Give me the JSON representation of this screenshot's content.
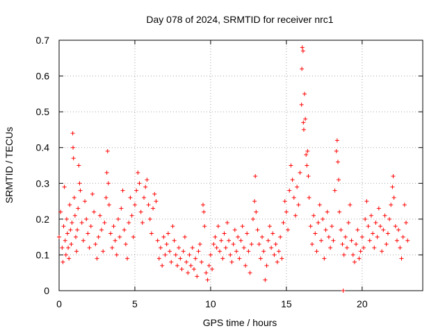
{
  "chart_data": {
    "type": "scatter",
    "title": "Day 078 of 2024, SRMTID for receiver nrc1",
    "xlabel": "GPS time / hours",
    "ylabel": "SRMTID / TECUs",
    "xlim": [
      0,
      24
    ],
    "ylim": [
      0,
      0.7
    ],
    "xticks": [
      0,
      5,
      10,
      15,
      20
    ],
    "yticks": [
      0,
      0.1,
      0.2,
      0.3,
      0.4,
      0.5,
      0.6,
      0.7
    ],
    "xtick_labels": [
      "0",
      "5",
      "10",
      "15",
      "20"
    ],
    "ytick_labels": [
      "0",
      "0.1",
      "0.2",
      "0.3",
      "0.4",
      "0.5",
      "0.6",
      "0.7"
    ],
    "grid": true,
    "marker": "+",
    "series": [
      {
        "name": "nrc1",
        "color": "#ff0000",
        "points": [
          [
            0.0,
            0.15
          ],
          [
            0.1,
            0.22
          ],
          [
            0.2,
            0.12
          ],
          [
            0.25,
            0.08
          ],
          [
            0.3,
            0.18
          ],
          [
            0.35,
            0.29
          ],
          [
            0.4,
            0.14
          ],
          [
            0.45,
            0.1
          ],
          [
            0.5,
            0.2
          ],
          [
            0.55,
            0.16
          ],
          [
            0.6,
            0.12
          ],
          [
            0.65,
            0.09
          ],
          [
            0.7,
            0.24
          ],
          [
            0.75,
            0.17
          ],
          [
            0.8,
            0.13
          ],
          [
            0.85,
            0.19
          ],
          [
            0.9,
            0.44
          ],
          [
            0.92,
            0.4
          ],
          [
            0.95,
            0.37
          ],
          [
            1.0,
            0.26
          ],
          [
            1.05,
            0.21
          ],
          [
            1.1,
            0.15
          ],
          [
            1.15,
            0.11
          ],
          [
            1.2,
            0.17
          ],
          [
            1.25,
            0.23
          ],
          [
            1.3,
            0.35
          ],
          [
            1.35,
            0.3
          ],
          [
            1.4,
            0.28
          ],
          [
            1.5,
            0.19
          ],
          [
            1.6,
            0.14
          ],
          [
            1.7,
            0.25
          ],
          [
            1.8,
            0.2
          ],
          [
            1.9,
            0.16
          ],
          [
            2.0,
            0.12
          ],
          [
            2.1,
            0.18
          ],
          [
            2.2,
            0.27
          ],
          [
            2.3,
            0.22
          ],
          [
            2.4,
            0.13
          ],
          [
            2.5,
            0.09
          ],
          [
            2.6,
            0.15
          ],
          [
            2.7,
            0.21
          ],
          [
            2.8,
            0.17
          ],
          [
            2.9,
            0.11
          ],
          [
            3.0,
            0.19
          ],
          [
            3.1,
            0.26
          ],
          [
            3.15,
            0.33
          ],
          [
            3.2,
            0.39
          ],
          [
            3.25,
            0.3
          ],
          [
            3.3,
            0.24
          ],
          [
            3.4,
            0.16
          ],
          [
            3.5,
            0.12
          ],
          [
            3.6,
            0.18
          ],
          [
            3.7,
            0.14
          ],
          [
            3.8,
            0.1
          ],
          [
            3.9,
            0.2
          ],
          [
            4.0,
            0.15
          ],
          [
            4.1,
            0.23
          ],
          [
            4.2,
            0.28
          ],
          [
            4.3,
            0.17
          ],
          [
            4.4,
            0.13
          ],
          [
            4.5,
            0.09
          ],
          [
            4.6,
            0.19
          ],
          [
            4.7,
            0.26
          ],
          [
            4.8,
            0.21
          ],
          [
            4.9,
            0.15
          ],
          [
            5.0,
            0.24
          ],
          [
            5.1,
            0.28
          ],
          [
            5.2,
            0.33
          ],
          [
            5.3,
            0.3
          ],
          [
            5.4,
            0.22
          ],
          [
            5.5,
            0.19
          ],
          [
            5.6,
            0.26
          ],
          [
            5.7,
            0.29
          ],
          [
            5.8,
            0.31
          ],
          [
            5.9,
            0.24
          ],
          [
            6.0,
            0.2
          ],
          [
            6.1,
            0.16
          ],
          [
            6.2,
            0.23
          ],
          [
            6.3,
            0.27
          ],
          [
            6.4,
            0.25
          ],
          [
            6.5,
            0.14
          ],
          [
            6.6,
            0.09
          ],
          [
            6.7,
            0.12
          ],
          [
            6.8,
            0.07
          ],
          [
            6.9,
            0.15
          ],
          [
            7.0,
            0.1
          ],
          [
            7.1,
            0.13
          ],
          [
            7.2,
            0.16
          ],
          [
            7.3,
            0.11
          ],
          [
            7.4,
            0.08
          ],
          [
            7.5,
            0.18
          ],
          [
            7.6,
            0.14
          ],
          [
            7.7,
            0.1
          ],
          [
            7.8,
            0.07
          ],
          [
            7.9,
            0.12
          ],
          [
            8.0,
            0.09
          ],
          [
            8.1,
            0.06
          ],
          [
            8.2,
            0.11
          ],
          [
            8.3,
            0.15
          ],
          [
            8.4,
            0.08
          ],
          [
            8.5,
            0.05
          ],
          [
            8.6,
            0.1
          ],
          [
            8.7,
            0.07
          ],
          [
            8.8,
            0.12
          ],
          [
            8.9,
            0.06
          ],
          [
            9.0,
            0.09
          ],
          [
            9.1,
            0.04
          ],
          [
            9.2,
            0.11
          ],
          [
            9.3,
            0.13
          ],
          [
            9.4,
            0.08
          ],
          [
            9.5,
            0.24
          ],
          [
            9.55,
            0.22
          ],
          [
            9.6,
            0.18
          ],
          [
            9.7,
            0.05
          ],
          [
            9.8,
            0.03
          ],
          [
            9.9,
            0.07
          ],
          [
            10.0,
            0.1
          ],
          [
            10.1,
            0.06
          ],
          [
            10.2,
            0.13
          ],
          [
            10.3,
            0.15
          ],
          [
            10.4,
            0.12
          ],
          [
            10.5,
            0.18
          ],
          [
            10.6,
            0.11
          ],
          [
            10.7,
            0.14
          ],
          [
            10.8,
            0.09
          ],
          [
            10.9,
            0.16
          ],
          [
            11.0,
            0.12
          ],
          [
            11.1,
            0.19
          ],
          [
            11.2,
            0.14
          ],
          [
            11.3,
            0.1
          ],
          [
            11.4,
            0.08
          ],
          [
            11.5,
            0.13
          ],
          [
            11.6,
            0.17
          ],
          [
            11.7,
            0.11
          ],
          [
            11.8,
            0.15
          ],
          [
            11.9,
            0.09
          ],
          [
            12.0,
            0.14
          ],
          [
            12.1,
            0.18
          ],
          [
            12.2,
            0.12
          ],
          [
            12.3,
            0.07
          ],
          [
            12.4,
            0.16
          ],
          [
            12.5,
            0.11
          ],
          [
            12.6,
            0.05
          ],
          [
            12.7,
            0.13
          ],
          [
            12.8,
            0.2
          ],
          [
            12.9,
            0.25
          ],
          [
            12.95,
            0.32
          ],
          [
            13.0,
            0.22
          ],
          [
            13.1,
            0.17
          ],
          [
            13.2,
            0.13
          ],
          [
            13.3,
            0.09
          ],
          [
            13.4,
            0.15
          ],
          [
            13.5,
            0.11
          ],
          [
            13.6,
            0.03
          ],
          [
            13.7,
            0.07
          ],
          [
            13.8,
            0.14
          ],
          [
            13.9,
            0.18
          ],
          [
            14.0,
            0.12
          ],
          [
            14.1,
            0.16
          ],
          [
            14.2,
            0.1
          ],
          [
            14.3,
            0.13
          ],
          [
            14.4,
            0.08
          ],
          [
            14.5,
            0.11
          ],
          [
            14.6,
            0.15
          ],
          [
            14.7,
            0.09
          ],
          [
            14.8,
            0.19
          ],
          [
            14.9,
            0.25
          ],
          [
            15.0,
            0.22
          ],
          [
            15.1,
            0.17
          ],
          [
            15.2,
            0.28
          ],
          [
            15.3,
            0.35
          ],
          [
            15.4,
            0.31
          ],
          [
            15.5,
            0.26
          ],
          [
            15.6,
            0.21
          ],
          [
            15.7,
            0.29
          ],
          [
            15.8,
            0.24
          ],
          [
            15.9,
            0.33
          ],
          [
            16.0,
            0.52
          ],
          [
            16.02,
            0.62
          ],
          [
            16.05,
            0.68
          ],
          [
            16.1,
            0.67
          ],
          [
            16.12,
            0.47
          ],
          [
            16.15,
            0.45
          ],
          [
            16.2,
            0.55
          ],
          [
            16.25,
            0.48
          ],
          [
            16.3,
            0.38
          ],
          [
            16.35,
            0.35
          ],
          [
            16.4,
            0.39
          ],
          [
            16.45,
            0.32
          ],
          [
            16.5,
            0.26
          ],
          [
            16.6,
            0.18
          ],
          [
            16.7,
            0.13
          ],
          [
            16.8,
            0.21
          ],
          [
            16.9,
            0.16
          ],
          [
            17.0,
            0.11
          ],
          [
            17.1,
            0.19
          ],
          [
            17.2,
            0.24
          ],
          [
            17.3,
            0.14
          ],
          [
            17.4,
            0.2
          ],
          [
            17.5,
            0.09
          ],
          [
            17.6,
            0.17
          ],
          [
            17.7,
            0.22
          ],
          [
            17.8,
            0.15
          ],
          [
            17.9,
            0.12
          ],
          [
            18.0,
            0.18
          ],
          [
            18.1,
            0.14
          ],
          [
            18.2,
            0.28
          ],
          [
            18.3,
            0.39
          ],
          [
            18.35,
            0.42
          ],
          [
            18.4,
            0.36
          ],
          [
            18.45,
            0.31
          ],
          [
            18.5,
            0.22
          ],
          [
            18.6,
            0.17
          ],
          [
            18.7,
            0.13
          ],
          [
            18.75,
            0.0
          ],
          [
            18.8,
            0.1
          ],
          [
            18.9,
            0.15
          ],
          [
            19.0,
            0.12
          ],
          [
            19.1,
            0.19
          ],
          [
            19.2,
            0.24
          ],
          [
            19.3,
            0.14
          ],
          [
            19.4,
            0.1
          ],
          [
            19.5,
            0.08
          ],
          [
            19.6,
            0.13
          ],
          [
            19.7,
            0.17
          ],
          [
            19.8,
            0.09
          ],
          [
            19.9,
            0.11
          ],
          [
            20.0,
            0.15
          ],
          [
            20.1,
            0.12
          ],
          [
            20.2,
            0.2
          ],
          [
            20.3,
            0.25
          ],
          [
            20.4,
            0.18
          ],
          [
            20.5,
            0.14
          ],
          [
            20.6,
            0.21
          ],
          [
            20.7,
            0.16
          ],
          [
            20.8,
            0.12
          ],
          [
            20.9,
            0.19
          ],
          [
            21.0,
            0.15
          ],
          [
            21.1,
            0.23
          ],
          [
            21.2,
            0.18
          ],
          [
            21.3,
            0.11
          ],
          [
            21.4,
            0.17
          ],
          [
            21.5,
            0.21
          ],
          [
            21.6,
            0.13
          ],
          [
            21.7,
            0.16
          ],
          [
            21.8,
            0.2
          ],
          [
            21.9,
            0.24
          ],
          [
            22.0,
            0.29
          ],
          [
            22.05,
            0.32
          ],
          [
            22.1,
            0.26
          ],
          [
            22.2,
            0.18
          ],
          [
            22.3,
            0.14
          ],
          [
            22.4,
            0.17
          ],
          [
            22.5,
            0.12
          ],
          [
            22.6,
            0.09
          ],
          [
            22.7,
            0.15
          ],
          [
            22.8,
            0.24
          ],
          [
            22.9,
            0.19
          ],
          [
            23.0,
            0.14
          ]
        ]
      }
    ]
  }
}
